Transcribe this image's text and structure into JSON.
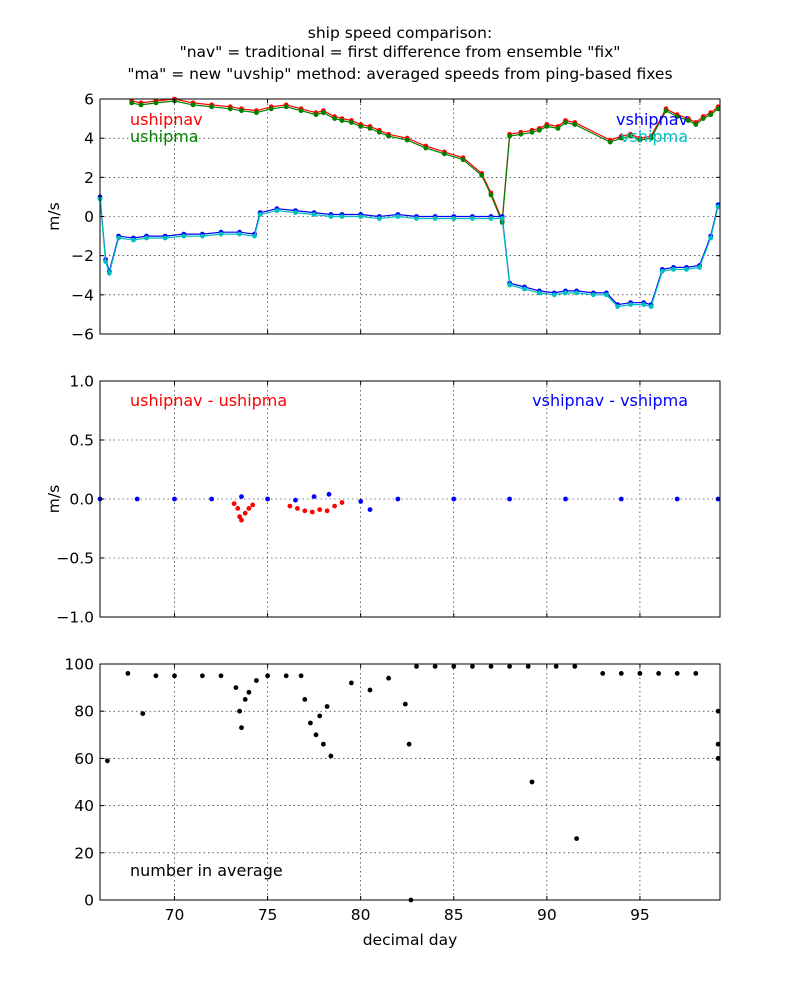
{
  "title_lines": [
    "ship speed comparison:",
    "\"nav\" = traditional = first difference from ensemble \"fix\"",
    "\"ma\" = new \"uvship\" method: averaged speeds from ping-based fixes"
  ],
  "colors": {
    "ushipnav": "#ff0000",
    "ushipma": "#008000",
    "vshipnav": "#0000ff",
    "vshipma": "#00bfbf",
    "count": "#000000"
  },
  "chart_data": [
    {
      "type": "line",
      "ylabel": "m/s",
      "ylim": [
        -6,
        6
      ],
      "yticks": [
        -6,
        -4,
        -2,
        0,
        2,
        4,
        6
      ],
      "xlim": [
        66,
        99.3
      ],
      "grid": true,
      "annotations": [
        "ushipnav",
        "ushipma",
        "vshipnav",
        "vshipma"
      ],
      "series": [
        {
          "name": "ushipnav",
          "color": "#ff0000",
          "x": [
            67.7,
            68.2,
            69.0,
            70.0,
            71.0,
            72.0,
            73.0,
            73.6,
            74.4,
            75.2,
            76.0,
            76.8,
            77.6,
            78.0,
            78.6,
            79.0,
            79.5,
            80.0,
            80.5,
            81.0,
            81.5,
            82.5,
            83.5,
            84.5,
            85.5,
            86.5,
            87.0,
            87.6,
            88.0,
            88.6,
            89.2,
            89.6,
            90.0,
            90.6,
            91.0,
            91.5,
            93.4,
            94.0,
            94.5,
            95.0,
            95.6,
            96.4,
            97.0,
            97.6,
            98.0,
            98.4,
            98.8,
            99.2
          ],
          "y": [
            5.9,
            5.8,
            5.9,
            6.0,
            5.8,
            5.7,
            5.6,
            5.5,
            5.4,
            5.6,
            5.7,
            5.5,
            5.3,
            5.4,
            5.1,
            5.0,
            4.9,
            4.7,
            4.6,
            4.4,
            4.2,
            4.0,
            3.6,
            3.3,
            3.0,
            2.2,
            1.2,
            -0.2,
            4.2,
            4.3,
            4.4,
            4.5,
            4.7,
            4.6,
            4.9,
            4.8,
            3.9,
            4.1,
            4.2,
            4.0,
            4.1,
            5.5,
            5.2,
            5.0,
            4.8,
            5.1,
            5.3,
            5.6
          ]
        },
        {
          "name": "ushipma",
          "color": "#008000",
          "x": [
            67.7,
            68.2,
            69.0,
            70.0,
            71.0,
            72.0,
            73.0,
            73.6,
            74.4,
            75.2,
            76.0,
            76.8,
            77.6,
            78.0,
            78.6,
            79.0,
            79.5,
            80.0,
            80.5,
            81.0,
            81.5,
            82.5,
            83.5,
            84.5,
            85.5,
            86.5,
            87.0,
            87.6,
            88.0,
            88.6,
            89.2,
            89.6,
            90.0,
            90.6,
            91.0,
            91.5,
            93.4,
            94.0,
            94.5,
            95.0,
            95.6,
            96.4,
            97.0,
            97.6,
            98.0,
            98.4,
            98.8,
            99.2
          ],
          "y": [
            5.8,
            5.7,
            5.8,
            5.9,
            5.7,
            5.6,
            5.5,
            5.4,
            5.3,
            5.5,
            5.6,
            5.4,
            5.2,
            5.3,
            5.0,
            4.9,
            4.8,
            4.6,
            4.5,
            4.3,
            4.1,
            3.9,
            3.5,
            3.2,
            2.9,
            2.1,
            1.1,
            -0.3,
            4.1,
            4.2,
            4.3,
            4.4,
            4.6,
            4.5,
            4.8,
            4.7,
            3.8,
            4.0,
            4.1,
            3.9,
            4.0,
            5.4,
            5.1,
            4.9,
            4.7,
            5.0,
            5.2,
            5.5
          ]
        },
        {
          "name": "vshipnav",
          "color": "#0000ff",
          "x": [
            66.0,
            66.3,
            66.5,
            67.0,
            67.8,
            68.5,
            69.5,
            70.5,
            71.5,
            72.5,
            73.5,
            74.3,
            74.6,
            75.5,
            76.5,
            77.5,
            78.4,
            79.0,
            80.0,
            81.0,
            82.0,
            83.0,
            84.0,
            85.0,
            86.0,
            87.0,
            87.6,
            88.0,
            88.8,
            89.6,
            90.4,
            91.0,
            91.6,
            92.5,
            93.2,
            93.8,
            94.5,
            95.2,
            95.6,
            96.2,
            96.8,
            97.5,
            98.2,
            98.8,
            99.2
          ],
          "y": [
            1.0,
            -2.2,
            -2.8,
            -1.0,
            -1.1,
            -1.0,
            -1.0,
            -0.9,
            -0.9,
            -0.8,
            -0.8,
            -0.9,
            0.2,
            0.4,
            0.3,
            0.2,
            0.1,
            0.1,
            0.1,
            0.0,
            0.1,
            0.0,
            0.0,
            0.0,
            0.0,
            0.0,
            0.0,
            -3.4,
            -3.6,
            -3.8,
            -3.9,
            -3.8,
            -3.8,
            -3.9,
            -3.9,
            -4.5,
            -4.4,
            -4.4,
            -4.5,
            -2.7,
            -2.6,
            -2.6,
            -2.5,
            -1.0,
            0.6
          ]
        },
        {
          "name": "vshipma",
          "color": "#00bfbf",
          "x": [
            66.0,
            66.3,
            66.5,
            67.0,
            67.8,
            68.5,
            69.5,
            70.5,
            71.5,
            72.5,
            73.5,
            74.3,
            74.6,
            75.5,
            76.5,
            77.5,
            78.4,
            79.0,
            80.0,
            81.0,
            82.0,
            83.0,
            84.0,
            85.0,
            86.0,
            87.0,
            87.6,
            88.0,
            88.8,
            89.6,
            90.4,
            91.0,
            91.6,
            92.5,
            93.2,
            93.8,
            94.5,
            95.2,
            95.6,
            96.2,
            96.8,
            97.5,
            98.2,
            98.8,
            99.2
          ],
          "y": [
            0.9,
            -2.3,
            -2.9,
            -1.1,
            -1.2,
            -1.1,
            -1.1,
            -1.0,
            -1.0,
            -0.9,
            -0.9,
            -1.0,
            0.1,
            0.3,
            0.2,
            0.1,
            0.0,
            0.0,
            0.0,
            -0.1,
            0.0,
            -0.1,
            -0.1,
            -0.1,
            -0.1,
            -0.1,
            -0.1,
            -3.5,
            -3.7,
            -3.9,
            -4.0,
            -3.9,
            -3.9,
            -4.0,
            -4.0,
            -4.6,
            -4.5,
            -4.5,
            -4.6,
            -2.8,
            -2.7,
            -2.7,
            -2.6,
            -1.1,
            0.5
          ]
        }
      ]
    },
    {
      "type": "scatter",
      "ylabel": "m/s",
      "ylim": [
        -1.0,
        1.0
      ],
      "yticks": [
        -1.0,
        -0.5,
        0.0,
        0.5,
        1.0
      ],
      "xlim": [
        66,
        99.3
      ],
      "grid": true,
      "annotations": [
        "ushipnav - ushipma",
        "vshipnav - vshipma"
      ],
      "series": [
        {
          "name": "ushipnav - ushipma",
          "color": "#ff0000",
          "x": [
            73.2,
            73.4,
            73.5,
            73.6,
            73.8,
            74.0,
            74.2,
            76.2,
            76.6,
            77.0,
            77.4,
            77.8,
            78.2,
            78.6,
            79.0
          ],
          "y": [
            -0.04,
            -0.08,
            -0.15,
            -0.18,
            -0.12,
            -0.08,
            -0.05,
            -0.06,
            -0.08,
            -0.1,
            -0.11,
            -0.09,
            -0.1,
            -0.06,
            -0.03
          ]
        },
        {
          "name": "vshipnav - vshipma",
          "color": "#0000ff",
          "x": [
            66.0,
            68.0,
            70.0,
            72.0,
            73.6,
            75.0,
            76.5,
            77.5,
            78.3,
            80.0,
            80.5,
            82.0,
            85.0,
            88.0,
            91.0,
            94.0,
            97.0,
            99.2
          ],
          "y": [
            0.0,
            0.0,
            0.0,
            0.0,
            0.02,
            0.0,
            -0.01,
            0.02,
            0.04,
            -0.02,
            -0.09,
            0.0,
            0.0,
            0.0,
            0.0,
            0.0,
            0.0,
            0.0
          ]
        }
      ]
    },
    {
      "type": "scatter",
      "ylabel": "",
      "xlabel": "decimal day",
      "ylim": [
        0,
        100
      ],
      "yticks": [
        0,
        20,
        40,
        60,
        80,
        100
      ],
      "xlim": [
        66,
        99.3
      ],
      "xticks": [
        70,
        75,
        80,
        85,
        90,
        95
      ],
      "grid": true,
      "annotations": [
        "number in average"
      ],
      "series": [
        {
          "name": "number in average",
          "color": "#000000",
          "x": [
            66.4,
            67.5,
            68.3,
            69.0,
            70.0,
            71.5,
            72.5,
            73.3,
            73.5,
            73.6,
            73.8,
            74.0,
            74.4,
            75.0,
            76.0,
            76.8,
            77.0,
            77.3,
            77.6,
            77.8,
            78.0,
            78.2,
            78.4,
            79.5,
            80.5,
            81.5,
            82.4,
            82.6,
            82.7,
            83.0,
            84.0,
            85.0,
            86.0,
            87.0,
            88.0,
            89.0,
            89.2,
            90.5,
            91.5,
            91.6,
            93.0,
            94.0,
            95.0,
            96.0,
            97.0,
            98.0,
            99.2,
            99.2,
            99.2
          ],
          "y": [
            59,
            96,
            79,
            95,
            95,
            95,
            95,
            90,
            80,
            73,
            85,
            88,
            93,
            95,
            95,
            95,
            85,
            75,
            70,
            78,
            66,
            82,
            61,
            92,
            89,
            94,
            83,
            66,
            0,
            99,
            99,
            99,
            99,
            99,
            99,
            99,
            50,
            99,
            99,
            26,
            96,
            96,
            96,
            96,
            96,
            96,
            80,
            66,
            60
          ]
        }
      ]
    }
  ]
}
